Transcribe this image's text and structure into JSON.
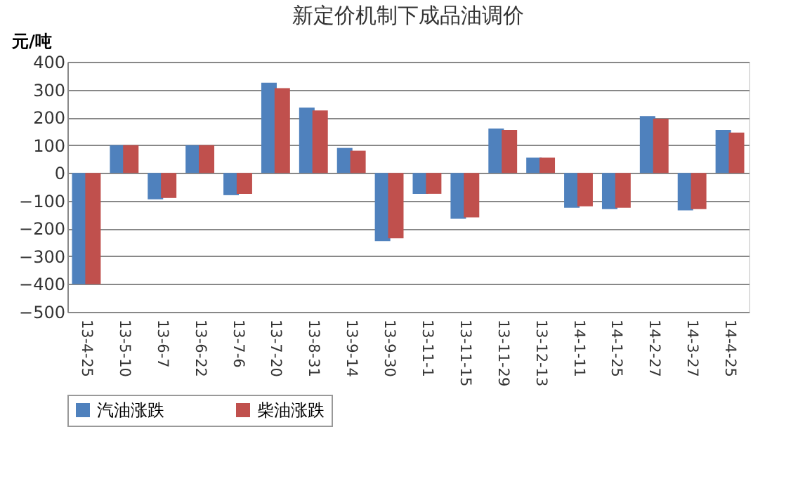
{
  "chart_data": {
    "type": "bar",
    "title": "新定价机制下成品油调价",
    "ylabel": "元/吨",
    "categories": [
      "13-4-25",
      "13-5-10",
      "13-6-7",
      "13-6-22",
      "13-7-6",
      "13-7-20",
      "13-8-31",
      "13-9-14",
      "13-9-30",
      "13-11-1",
      "13-11-15",
      "13-11-29",
      "13-12-13",
      "14-1-11",
      "14-1-25",
      "14-2-27",
      "14-3-27",
      "14-4-25"
    ],
    "series": [
      {
        "name": "汽油涨跌",
        "color": "#4f81bd",
        "values": [
          -400,
          100,
          -95,
          100,
          -80,
          325,
          235,
          90,
          -245,
          -75,
          -165,
          160,
          55,
          -125,
          -130,
          205,
          -135,
          155
        ]
      },
      {
        "name": "柴油涨跌",
        "color": "#c0504d",
        "values": [
          -400,
          100,
          -90,
          100,
          -75,
          305,
          225,
          80,
          -235,
          -75,
          -160,
          155,
          55,
          -120,
          -125,
          195,
          -130,
          145
        ]
      }
    ],
    "ylim": [
      -500,
      400
    ],
    "yticks": [
      -500,
      -400,
      -300,
      -200,
      -100,
      0,
      100,
      200,
      300,
      400
    ],
    "grid": "y",
    "legend": "bottom"
  }
}
